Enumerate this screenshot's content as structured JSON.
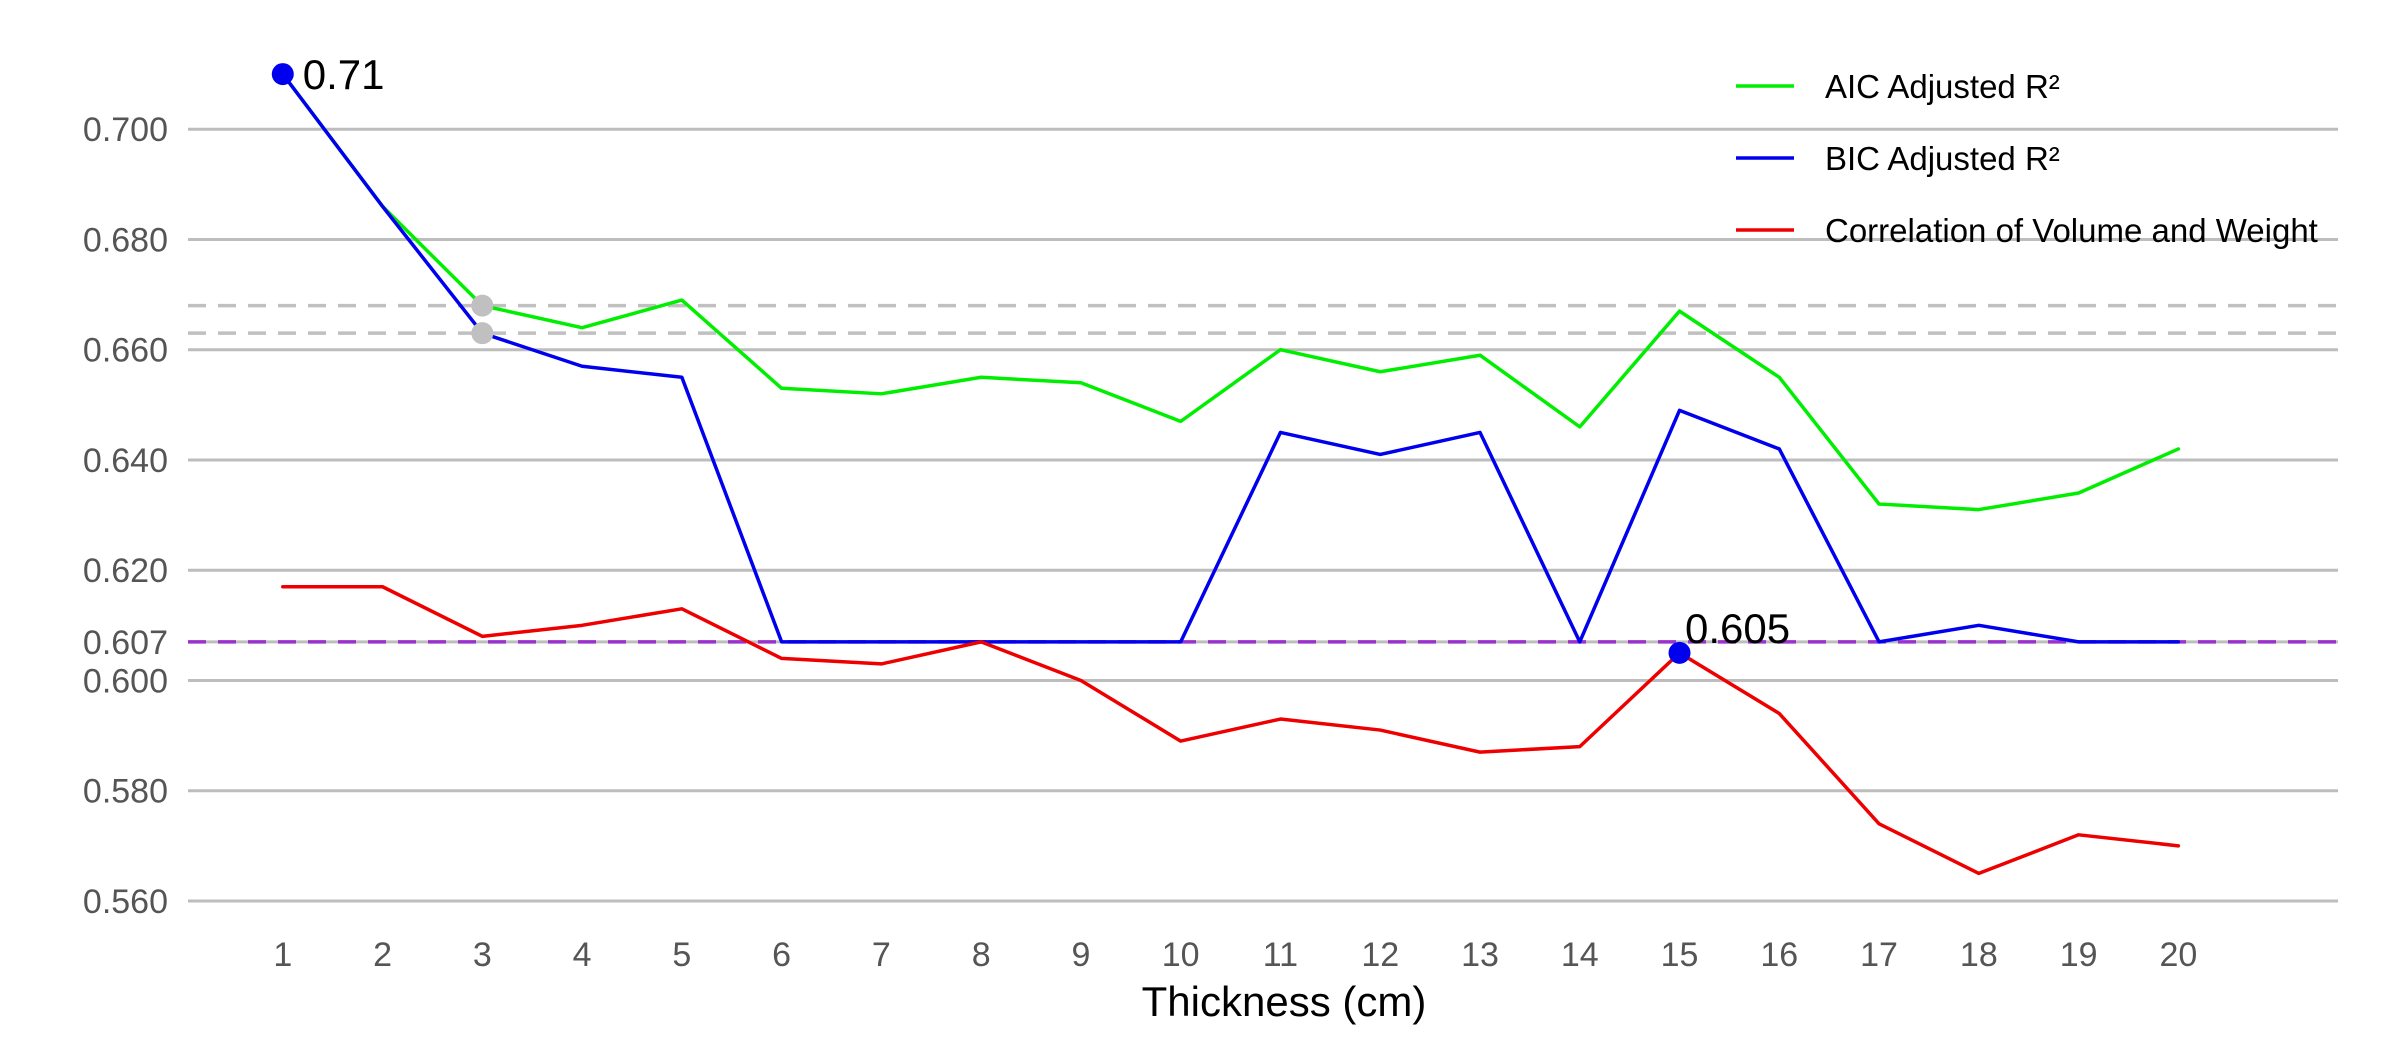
{
  "chart_data": {
    "type": "line",
    "xlabel": "Thickness (cm)",
    "ylabel": "",
    "x": [
      1,
      2,
      3,
      4,
      5,
      6,
      7,
      8,
      9,
      10,
      11,
      12,
      13,
      14,
      15,
      16,
      17,
      18,
      19,
      20
    ],
    "ylim": [
      0.556,
      0.718
    ],
    "xlim": [
      0.05,
      21.6
    ],
    "yticks": [
      0.56,
      0.58,
      0.6,
      0.607,
      0.62,
      0.64,
      0.66,
      0.68,
      0.7
    ],
    "ytick_labels": [
      "0.560",
      "0.580",
      "0.600",
      "0.607",
      "0.620",
      "0.640",
      "0.660",
      "0.680",
      "0.700"
    ],
    "grid": "horizontal",
    "legend_position": "top-right",
    "series": [
      {
        "name": "AIC Adjusted R²",
        "color": "#00ee00",
        "values": [
          0.71,
          0.686,
          0.668,
          0.664,
          0.669,
          0.653,
          0.652,
          0.655,
          0.654,
          0.647,
          0.66,
          0.656,
          0.659,
          0.646,
          0.667,
          0.655,
          0.632,
          0.631,
          0.634,
          0.642
        ]
      },
      {
        "name": "BIC Adjusted R²",
        "color": "#0000ee",
        "values": [
          0.71,
          0.686,
          0.663,
          0.657,
          0.655,
          0.607,
          0.607,
          0.607,
          0.607,
          0.607,
          0.645,
          0.641,
          0.645,
          0.607,
          0.649,
          0.642,
          0.607,
          0.61,
          0.607,
          0.607
        ]
      },
      {
        "name": "Correlation of Volume and Weight",
        "color": "#ee0000",
        "values": [
          0.617,
          0.617,
          0.608,
          0.61,
          0.613,
          0.604,
          0.603,
          0.607,
          0.6,
          0.589,
          0.593,
          0.591,
          0.587,
          0.588,
          0.605,
          0.594,
          0.574,
          0.565,
          0.572,
          0.57
        ]
      }
    ],
    "reference_lines": [
      {
        "y": 0.668,
        "color": "#c0c0c0",
        "style": "dashed"
      },
      {
        "y": 0.663,
        "color": "#c0c0c0",
        "style": "dashed"
      },
      {
        "y": 0.607,
        "color": "#9933cc",
        "style": "dashed"
      }
    ],
    "markers": [
      {
        "x": 1,
        "y": 0.71,
        "color": "#0000ee",
        "label": "0.71"
      },
      {
        "x": 15,
        "y": 0.605,
        "color": "#0000ee",
        "label": "0.605"
      },
      {
        "x": 3,
        "y": 0.668,
        "color": "#c0c0c0",
        "label": ""
      },
      {
        "x": 3,
        "y": 0.663,
        "color": "#c0c0c0",
        "label": ""
      }
    ]
  }
}
